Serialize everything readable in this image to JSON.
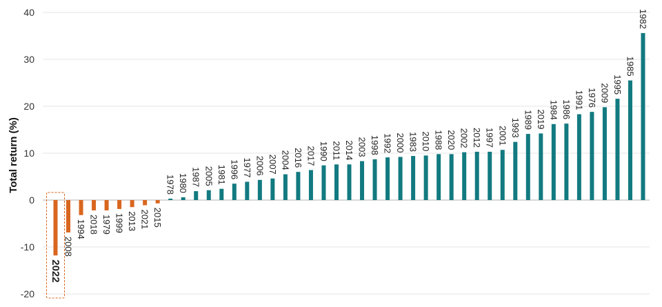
{
  "chart_data": {
    "type": "bar",
    "title": "",
    "xlabel": "",
    "ylabel": "Total return (%)",
    "ylim": [
      -20,
      40
    ],
    "yticks": [
      -20,
      -10,
      0,
      10,
      20,
      30,
      40
    ],
    "ytick_labels": [
      "-20",
      "-10",
      "0",
      "10",
      "20",
      "30",
      "40"
    ],
    "grid": "horizontal",
    "legend": "none",
    "highlight_category": "2022",
    "colors": {
      "negative": "#D9661F",
      "positive": "#127A80",
      "highlight_box": "#D9661F",
      "grid": "#E6E6E6",
      "zero_line": "#B3B3B3"
    },
    "categories": [
      "2022",
      "2008",
      "1994",
      "2018",
      "1979",
      "1999",
      "2013",
      "2021",
      "2015",
      "1978",
      "1980",
      "1987",
      "2005",
      "1981",
      "1996",
      "1977",
      "2006",
      "2007",
      "2004",
      "2016",
      "2017",
      "1990",
      "2011",
      "2014",
      "2003",
      "1998",
      "1992",
      "2000",
      "1983",
      "2010",
      "1988",
      "2020",
      "2002",
      "2012",
      "1997",
      "2001",
      "1993",
      "1989",
      "2019",
      "1984",
      "1986",
      "1991",
      "1976",
      "2009",
      "1995",
      "1985",
      "1982"
    ],
    "values": [
      -11.8,
      -6.9,
      -3.2,
      -2.2,
      -2.2,
      -1.9,
      -1.5,
      -1.1,
      -0.7,
      0.3,
      0.6,
      1.9,
      2.1,
      2.4,
      3.5,
      3.9,
      4.3,
      4.6,
      5.5,
      6.0,
      6.4,
      7.4,
      7.6,
      7.6,
      8.3,
      8.7,
      9.1,
      9.2,
      9.4,
      9.5,
      9.8,
      9.8,
      10.2,
      10.3,
      10.3,
      10.7,
      12.4,
      14.1,
      14.2,
      16.2,
      16.3,
      18.3,
      18.8,
      19.8,
      21.6,
      25.5,
      35.6
    ]
  }
}
